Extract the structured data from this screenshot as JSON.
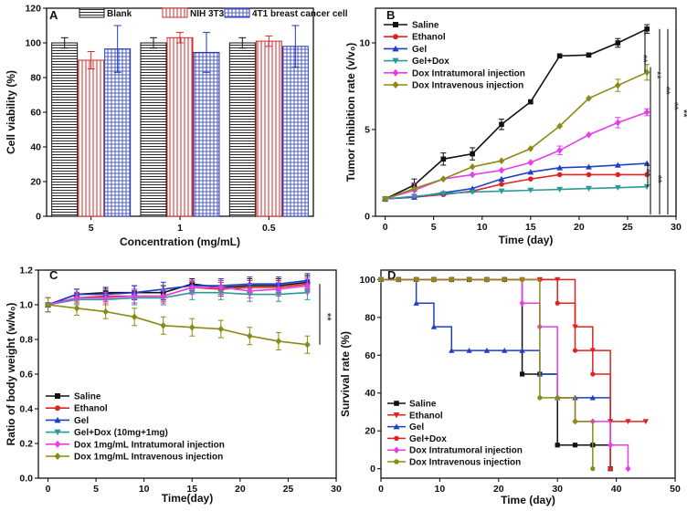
{
  "figure": {
    "colors": {
      "saline": "#111111",
      "ethanol": "#e02222",
      "gel": "#1f3fc8",
      "gel_dox": "#2a9a96",
      "dox_it": "#e83ce8",
      "dox_iv": "#8a8a14",
      "blank": "#111111",
      "nih": "#d42b2b",
      "t4": "#2438b8"
    }
  },
  "chart_data": [
    {
      "id": "A",
      "type": "bar",
      "letter": "A",
      "title": "",
      "xlabel": "Concentration (mg/mL)",
      "ylabel": "Cell viability (%)",
      "ylim": [
        0,
        120
      ],
      "yticks": [
        0,
        20,
        40,
        60,
        80,
        100,
        120
      ],
      "categories": [
        "5",
        "1",
        "0.5"
      ],
      "series": [
        {
          "name": "Blank",
          "values": [
            100,
            100,
            100
          ],
          "errors": [
            3,
            3,
            3
          ]
        },
        {
          "name": "NIH 3T3 cell",
          "values": [
            90,
            103,
            101
          ],
          "errors": [
            5,
            3,
            3
          ]
        },
        {
          "name": "4T1 breast cancer cell",
          "values": [
            96.5,
            94.5,
            98
          ],
          "errors": [
            13.5,
            11.5,
            12
          ]
        }
      ]
    },
    {
      "id": "B",
      "type": "line",
      "letter": "B",
      "xlabel": "Time (day)",
      "ylabel": "Tumor inhibition rate (v/v₀)",
      "xlim": [
        -1,
        30
      ],
      "ylim": [
        0,
        12
      ],
      "xticks": [
        0,
        5,
        10,
        15,
        20,
        25,
        30
      ],
      "yticks": [
        0,
        5,
        10
      ],
      "x": [
        0,
        3,
        6,
        9,
        12,
        15,
        18,
        21,
        24,
        27
      ],
      "series": [
        {
          "name": "Saline",
          "key": "saline",
          "marker": "square",
          "values": [
            1,
            1.8,
            3.3,
            3.6,
            5.3,
            6.6,
            9.25,
            9.3,
            10.0,
            10.8
          ],
          "errors": [
            0,
            0.35,
            0.35,
            0.35,
            0.3,
            0,
            0,
            0,
            0.25,
            0.25
          ]
        },
        {
          "name": "Ethanol",
          "key": "ethanol",
          "marker": "circle",
          "values": [
            1,
            1.1,
            1.25,
            1.45,
            1.85,
            2.15,
            2.4,
            2.4,
            2.4,
            2.4
          ],
          "errors": [
            0,
            0,
            0,
            0,
            0,
            0,
            0,
            0,
            0,
            0
          ]
        },
        {
          "name": "Gel",
          "key": "gel",
          "marker": "triangle",
          "values": [
            1,
            1.1,
            1.35,
            1.6,
            2.15,
            2.55,
            2.8,
            2.85,
            2.95,
            3.05
          ],
          "errors": [
            0,
            0,
            0,
            0,
            0,
            0,
            0,
            0,
            0,
            0
          ]
        },
        {
          "name": "Gel+Dox",
          "key": "gel_dox",
          "marker": "triangle-down",
          "values": [
            1,
            1.15,
            1.3,
            1.4,
            1.45,
            1.5,
            1.55,
            1.6,
            1.65,
            1.7
          ],
          "errors": [
            0,
            0,
            0,
            0,
            0,
            0,
            0,
            0,
            0,
            0
          ]
        },
        {
          "name": "Dox  Intratumoral injection",
          "key": "dox_it",
          "marker": "diamond",
          "values": [
            1,
            1.5,
            2.15,
            2.4,
            2.65,
            3.1,
            3.8,
            4.7,
            5.4,
            6.0
          ],
          "errors": [
            0,
            0.4,
            0,
            0,
            0,
            0,
            0.25,
            0,
            0.3,
            0.2
          ]
        },
        {
          "name": "Dox  Intravenous injection",
          "key": "dox_iv",
          "marker": "diamond",
          "values": [
            1,
            1.6,
            2.15,
            2.85,
            3.2,
            3.9,
            5.2,
            6.8,
            7.55,
            8.3
          ],
          "errors": [
            0,
            0,
            0,
            0,
            0,
            0,
            0,
            0,
            0.35,
            0.45
          ]
        }
      ],
      "significance": [
        "**",
        "**",
        "**",
        "**",
        "**",
        "**"
      ]
    },
    {
      "id": "C",
      "type": "line",
      "letter": "C",
      "xlabel": "Time(day)",
      "ylabel": "Ratio of body weight (w/w₀)",
      "xlim": [
        -1,
        30
      ],
      "ylim": [
        0,
        1.2
      ],
      "xticks": [
        0,
        5,
        10,
        15,
        20,
        25,
        30
      ],
      "yticks": [
        0.0,
        0.2,
        0.4,
        0.6,
        0.8,
        1.0,
        1.2
      ],
      "x": [
        0,
        3,
        6,
        9,
        12,
        15,
        18,
        21,
        24,
        27
      ],
      "series": [
        {
          "name": "Saline",
          "key": "saline",
          "marker": "square",
          "values": [
            1,
            1.06,
            1.07,
            1.07,
            1.07,
            1.12,
            1.1,
            1.11,
            1.11,
            1.13
          ],
          "errors": [
            0.04,
            0.03,
            0.03,
            0.04,
            0.04,
            0.03,
            0.04,
            0.04,
            0.04,
            0.04
          ]
        },
        {
          "name": "Ethanol",
          "key": "ethanol",
          "marker": "circle",
          "values": [
            1,
            1.04,
            1.05,
            1.05,
            1.05,
            1.1,
            1.09,
            1.1,
            1.1,
            1.12
          ],
          "errors": [
            0.04,
            0.03,
            0.03,
            0.04,
            0.03,
            0.03,
            0.04,
            0.04,
            0.04,
            0.04
          ]
        },
        {
          "name": "Gel",
          "key": "gel",
          "marker": "triangle",
          "values": [
            1,
            1.06,
            1.06,
            1.07,
            1.09,
            1.11,
            1.11,
            1.12,
            1.12,
            1.14
          ],
          "errors": [
            0.04,
            0.03,
            0.03,
            0.04,
            0.04,
            0.03,
            0.04,
            0.04,
            0.04,
            0.04
          ]
        },
        {
          "name": "Gel+Dox (10mg+1mg)",
          "key": "gel_dox",
          "marker": "triangle-down",
          "values": [
            1,
            1.03,
            1.03,
            1.04,
            1.04,
            1.07,
            1.07,
            1.06,
            1.06,
            1.07
          ],
          "errors": [
            0.04,
            0.03,
            0.03,
            0.04,
            0.04,
            0.04,
            0.04,
            0.04,
            0.04,
            0.04
          ]
        },
        {
          "name": "Dox 1mg/mL Intratumoral injection",
          "key": "dox_it",
          "marker": "diamond",
          "values": [
            1,
            1.04,
            1.04,
            1.05,
            1.05,
            1.1,
            1.1,
            1.08,
            1.09,
            1.11
          ],
          "errors": [
            0.04,
            0.03,
            0.03,
            0.04,
            0.04,
            0.04,
            0.04,
            0.04,
            0.04,
            0.04
          ]
        },
        {
          "name": "Dox 1mg/mL Intravenous injection",
          "key": "dox_iv",
          "marker": "diamond",
          "values": [
            1,
            0.98,
            0.96,
            0.93,
            0.88,
            0.87,
            0.86,
            0.82,
            0.79,
            0.77
          ],
          "errors": [
            0.04,
            0.04,
            0.04,
            0.05,
            0.05,
            0.05,
            0.05,
            0.05,
            0.05,
            0.05
          ]
        }
      ],
      "significance": [
        "**"
      ]
    },
    {
      "id": "D",
      "type": "line",
      "letter": "D",
      "step": true,
      "xlabel": "Time (day)",
      "ylabel": "Survival rate (%)",
      "xlim": [
        0,
        50
      ],
      "ylim": [
        -5,
        105
      ],
      "xticks": [
        0,
        10,
        20,
        30,
        40,
        50
      ],
      "yticks": [
        0,
        20,
        40,
        60,
        80,
        100
      ],
      "series": [
        {
          "name": "Saline",
          "key": "saline",
          "marker": "square",
          "x": [
            0,
            3,
            6,
            9,
            12,
            15,
            18,
            21,
            24,
            27,
            30,
            33,
            36,
            39
          ],
          "values": [
            100,
            100,
            100,
            100,
            100,
            100,
            100,
            100,
            50,
            50,
            12.5,
            12.5,
            12.5,
            0
          ]
        },
        {
          "name": "Ethanol",
          "key": "ethanol",
          "marker": "triangle-down",
          "x": [
            0,
            3,
            6,
            9,
            12,
            15,
            18,
            21,
            24,
            27,
            30,
            33,
            36,
            39,
            42,
            45
          ],
          "values": [
            100,
            100,
            100,
            100,
            100,
            100,
            100,
            100,
            100,
            100,
            100,
            75,
            62.5,
            25,
            25,
            25
          ]
        },
        {
          "name": "Gel",
          "key": "gel",
          "marker": "triangle",
          "x": [
            0,
            3,
            6,
            9,
            12,
            15,
            18,
            21,
            24,
            27,
            30,
            33,
            36,
            39
          ],
          "values": [
            100,
            100,
            87.5,
            75,
            62.5,
            62.5,
            62.5,
            62.5,
            62.5,
            50,
            37.5,
            37.5,
            37.5,
            0
          ]
        },
        {
          "name": "Gel+Dox",
          "key": "ethanol",
          "marker": "circle",
          "x": [
            0,
            3,
            6,
            9,
            12,
            15,
            18,
            21,
            24,
            27,
            30,
            33,
            36,
            39
          ],
          "values": [
            100,
            100,
            100,
            100,
            100,
            100,
            100,
            100,
            100,
            100,
            87.5,
            62.5,
            50,
            0
          ]
        },
        {
          "name": "Dox Intratumoral injection",
          "key": "dox_it",
          "marker": "diamond",
          "x": [
            0,
            3,
            6,
            9,
            12,
            15,
            18,
            21,
            24,
            27,
            30,
            33,
            36,
            39,
            42
          ],
          "values": [
            100,
            100,
            100,
            100,
            100,
            100,
            100,
            100,
            87.5,
            75,
            37.5,
            25,
            25,
            12.5,
            0
          ]
        },
        {
          "name": "Dox Intravenous injection",
          "key": "dox_iv",
          "marker": "circle",
          "x": [
            0,
            3,
            6,
            9,
            12,
            15,
            18,
            21,
            24,
            27,
            30,
            33,
            36
          ],
          "values": [
            100,
            100,
            100,
            100,
            100,
            100,
            100,
            100,
            100,
            37.5,
            37.5,
            25,
            0
          ]
        }
      ]
    }
  ]
}
